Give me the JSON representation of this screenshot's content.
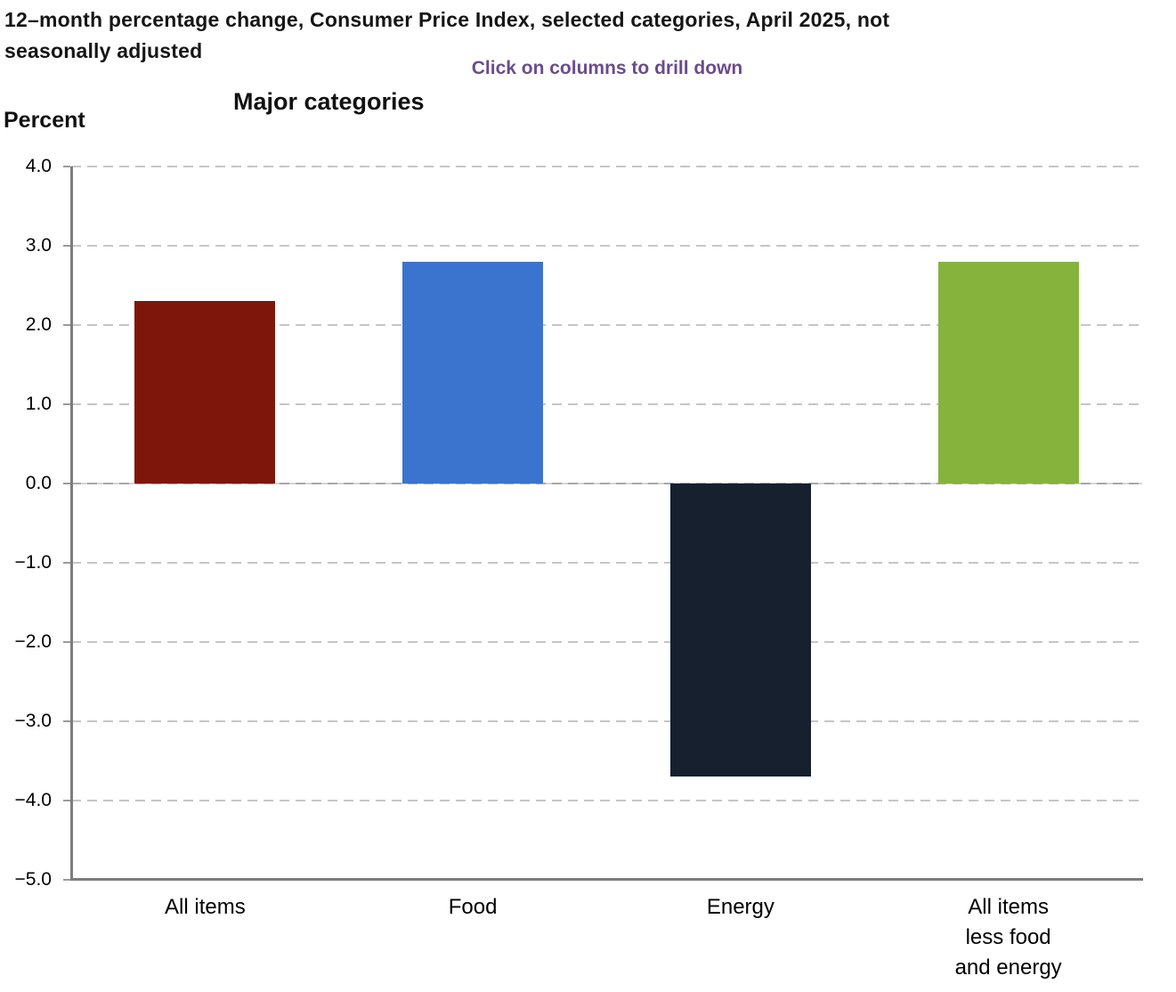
{
  "header": {
    "title_lines": [
      "12–month percentage change, Consumer Price Index, selected categories, April 2025, not",
      "seasonally adjusted"
    ],
    "subtitle": "Click on columns to drill down",
    "section_title": "Major categories",
    "y_axis_title": "Percent"
  },
  "colors": {
    "subtitle_purple": "#6A4C8A",
    "axis_gray": "#7d7d7d",
    "gridline_gray": "#c6c6c6",
    "bar_all_items": "#7E160C",
    "bar_food": "#3A74CE",
    "bar_energy": "#16202E",
    "bar_all_items_less_food_and_energy": "#85B33B"
  },
  "chart_data": {
    "type": "bar",
    "title": "Major categories",
    "categories": [
      "All items",
      "Food",
      "Energy",
      "All items\nless food\nand energy"
    ],
    "values": [
      2.3,
      2.8,
      -3.7,
      2.8
    ],
    "colors": [
      "#7E160C",
      "#3A74CE",
      "#16202E",
      "#85B33B"
    ],
    "xlabel": "",
    "ylabel": "Percent",
    "ylim": [
      -5.0,
      4.0
    ],
    "ytick_step": 1.0,
    "ytick_labels": [
      "4.0",
      "3.0",
      "2.0",
      "1.0",
      "0.0",
      "−1.0",
      "−2.0",
      "−3.0",
      "−4.0",
      "−5.0"
    ],
    "grid": "horizontal-dashed",
    "legend": "none",
    "interaction_hint": "Click on columns to drill down"
  }
}
